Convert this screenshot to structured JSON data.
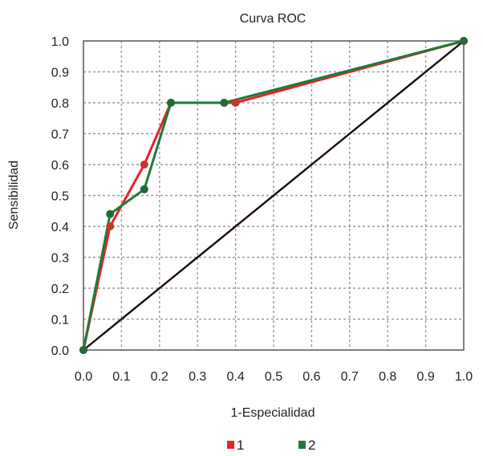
{
  "chart_data": {
    "type": "line",
    "title": "Curva ROC",
    "xlabel": "1-Especialidad",
    "ylabel": "Sensibilidad",
    "xlim": [
      0,
      1
    ],
    "ylim": [
      0,
      1
    ],
    "x_ticks": [
      "0.0",
      "0.1",
      "0.2",
      "0.3",
      "0.4",
      "0.5",
      "0.6",
      "0.7",
      "0.8",
      "0.9",
      "1.0"
    ],
    "y_ticks": [
      "0.0",
      "0.1",
      "0.2",
      "0.3",
      "0.4",
      "0.5",
      "0.6",
      "0.7",
      "0.8",
      "0.9",
      "1.0"
    ],
    "grid": true,
    "legend_position": "bottom",
    "reference_line": {
      "x": [
        0,
        1
      ],
      "y": [
        0,
        1
      ],
      "color": "#1a0a0a"
    },
    "series": [
      {
        "name": "1",
        "color": "#e8202a",
        "marker_color": "#c0392b",
        "x": [
          0.0,
          0.07,
          0.16,
          0.23,
          0.37,
          0.4,
          1.0
        ],
        "y": [
          0.0,
          0.4,
          0.6,
          0.8,
          0.8,
          0.8,
          1.0
        ]
      },
      {
        "name": "2",
        "color": "#1e7a3a",
        "marker_color": "#1e6b34",
        "x": [
          0.0,
          0.07,
          0.16,
          0.23,
          0.37,
          1.0
        ],
        "y": [
          0.0,
          0.44,
          0.52,
          0.8,
          0.8,
          1.0
        ]
      }
    ]
  }
}
